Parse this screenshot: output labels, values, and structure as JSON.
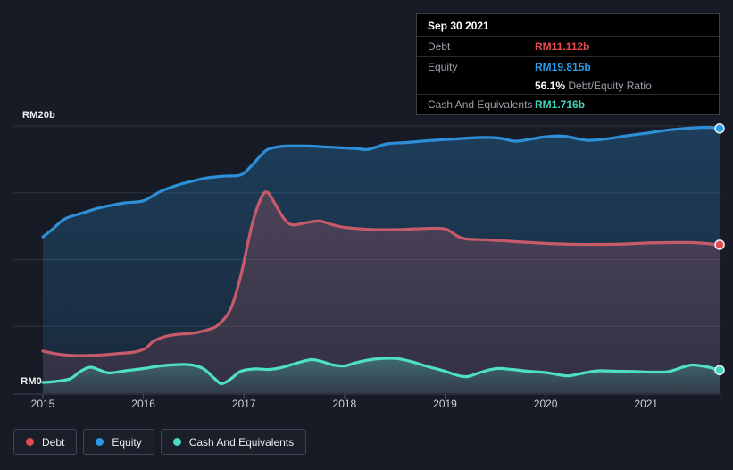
{
  "tooltip": {
    "date": "Sep 30 2021",
    "debt_label": "Debt",
    "debt_value": "RM11.112b",
    "debt_color": "#e8494f",
    "equity_label": "Equity",
    "equity_value": "RM19.815b",
    "equity_color": "#2b9be8",
    "ratio_pct": "56.1%",
    "ratio_label": "Debt/Equity Ratio",
    "cash_label": "Cash And Equivalents",
    "cash_value": "RM1.716b",
    "cash_color": "#3fd6b8"
  },
  "axis": {
    "y_top_label": "RM20b",
    "y_bottom_label": "RM0"
  },
  "legend": [
    {
      "key": "debt",
      "label": "Debt",
      "color": "#e8494f"
    },
    {
      "key": "equity",
      "label": "Equity",
      "color": "#2b9be8"
    },
    {
      "key": "cash",
      "label": "Cash And Equivalents",
      "color": "#45dfc0"
    }
  ],
  "chart_data": {
    "type": "area",
    "currency_unit": "RM billions",
    "x_ticks": [
      "2015",
      "2016",
      "2017",
      "2018",
      "2019",
      "2020",
      "2021"
    ],
    "x_range": [
      2015,
      2021.73
    ],
    "y_range_billions": [
      0,
      20
    ],
    "y_gridlines_billions": [
      5,
      10,
      15,
      20
    ],
    "grid": true,
    "legend_position": "bottom-left",
    "marked_date": "Sep 30 2021",
    "series": [
      {
        "key": "equity",
        "name": "Equity",
        "color": "#2e8fd9",
        "dot_color": "#2b9be8",
        "fill_opacity_top": 0.3,
        "fill_opacity_bottom": 0.12,
        "points": [
          [
            2015.0,
            11.7
          ],
          [
            2015.1,
            12.3
          ],
          [
            2015.22,
            13.05
          ],
          [
            2015.4,
            13.5
          ],
          [
            2015.55,
            13.85
          ],
          [
            2015.67,
            14.05
          ],
          [
            2015.82,
            14.25
          ],
          [
            2016.0,
            14.4
          ],
          [
            2016.17,
            15.1
          ],
          [
            2016.35,
            15.6
          ],
          [
            2016.48,
            15.85
          ],
          [
            2016.62,
            16.1
          ],
          [
            2016.8,
            16.25
          ],
          [
            2016.96,
            16.32
          ],
          [
            2017.06,
            16.9
          ],
          [
            2017.2,
            18.05
          ],
          [
            2017.28,
            18.35
          ],
          [
            2017.42,
            18.5
          ],
          [
            2017.64,
            18.5
          ],
          [
            2017.82,
            18.43
          ],
          [
            2018.0,
            18.36
          ],
          [
            2018.13,
            18.3
          ],
          [
            2018.24,
            18.26
          ],
          [
            2018.42,
            18.66
          ],
          [
            2018.62,
            18.76
          ],
          [
            2018.84,
            18.9
          ],
          [
            2019.11,
            19.03
          ],
          [
            2019.33,
            19.13
          ],
          [
            2019.53,
            19.1
          ],
          [
            2019.7,
            18.86
          ],
          [
            2019.86,
            19.03
          ],
          [
            2020.01,
            19.2
          ],
          [
            2020.19,
            19.23
          ],
          [
            2020.41,
            18.93
          ],
          [
            2020.62,
            19.05
          ],
          [
            2020.8,
            19.26
          ],
          [
            2021.0,
            19.46
          ],
          [
            2021.19,
            19.67
          ],
          [
            2021.42,
            19.83
          ],
          [
            2021.6,
            19.9
          ],
          [
            2021.73,
            19.815
          ]
        ]
      },
      {
        "key": "debt",
        "name": "Debt",
        "color": "#c85b69",
        "dot_color": "#e8494f",
        "fill_opacity_top": 0.28,
        "fill_opacity_bottom": 0.14,
        "points": [
          [
            2015.0,
            3.15
          ],
          [
            2015.15,
            2.92
          ],
          [
            2015.33,
            2.81
          ],
          [
            2015.55,
            2.84
          ],
          [
            2015.73,
            2.95
          ],
          [
            2015.91,
            3.08
          ],
          [
            2016.02,
            3.35
          ],
          [
            2016.1,
            3.88
          ],
          [
            2016.22,
            4.25
          ],
          [
            2016.35,
            4.41
          ],
          [
            2016.48,
            4.48
          ],
          [
            2016.64,
            4.75
          ],
          [
            2016.75,
            5.15
          ],
          [
            2016.87,
            6.35
          ],
          [
            2016.97,
            8.85
          ],
          [
            2017.08,
            12.6
          ],
          [
            2017.17,
            14.6
          ],
          [
            2017.23,
            15.05
          ],
          [
            2017.3,
            14.3
          ],
          [
            2017.4,
            13.05
          ],
          [
            2017.48,
            12.6
          ],
          [
            2017.61,
            12.75
          ],
          [
            2017.75,
            12.88
          ],
          [
            2017.88,
            12.6
          ],
          [
            2018.0,
            12.41
          ],
          [
            2018.22,
            12.27
          ],
          [
            2018.48,
            12.24
          ],
          [
            2018.75,
            12.31
          ],
          [
            2018.93,
            12.34
          ],
          [
            2019.02,
            12.24
          ],
          [
            2019.12,
            11.77
          ],
          [
            2019.21,
            11.54
          ],
          [
            2019.42,
            11.47
          ],
          [
            2019.64,
            11.37
          ],
          [
            2019.86,
            11.27
          ],
          [
            2020.04,
            11.2
          ],
          [
            2020.31,
            11.14
          ],
          [
            2020.57,
            11.14
          ],
          [
            2020.8,
            11.17
          ],
          [
            2021.0,
            11.24
          ],
          [
            2021.25,
            11.27
          ],
          [
            2021.47,
            11.27
          ],
          [
            2021.73,
            11.112
          ]
        ]
      },
      {
        "key": "cash",
        "name": "Cash And Equivalents",
        "color": "#4fdfc4",
        "dot_color": "#3fd6b8",
        "fill_opacity_top": 0.32,
        "fill_opacity_bottom": 0.06,
        "points": [
          [
            2015.0,
            0.8
          ],
          [
            2015.12,
            0.87
          ],
          [
            2015.27,
            1.07
          ],
          [
            2015.37,
            1.61
          ],
          [
            2015.47,
            1.94
          ],
          [
            2015.57,
            1.71
          ],
          [
            2015.66,
            1.51
          ],
          [
            2015.82,
            1.67
          ],
          [
            2016.0,
            1.84
          ],
          [
            2016.17,
            2.04
          ],
          [
            2016.35,
            2.14
          ],
          [
            2016.48,
            2.11
          ],
          [
            2016.6,
            1.81
          ],
          [
            2016.71,
            1.07
          ],
          [
            2016.78,
            0.7
          ],
          [
            2016.87,
            1.07
          ],
          [
            2016.97,
            1.64
          ],
          [
            2017.11,
            1.81
          ],
          [
            2017.24,
            1.77
          ],
          [
            2017.37,
            1.91
          ],
          [
            2017.52,
            2.24
          ],
          [
            2017.67,
            2.51
          ],
          [
            2017.77,
            2.37
          ],
          [
            2017.89,
            2.11
          ],
          [
            2018.0,
            2.04
          ],
          [
            2018.11,
            2.27
          ],
          [
            2018.26,
            2.51
          ],
          [
            2018.41,
            2.61
          ],
          [
            2018.53,
            2.58
          ],
          [
            2018.66,
            2.37
          ],
          [
            2018.82,
            2.01
          ],
          [
            2019.0,
            1.64
          ],
          [
            2019.12,
            1.34
          ],
          [
            2019.22,
            1.24
          ],
          [
            2019.36,
            1.57
          ],
          [
            2019.51,
            1.84
          ],
          [
            2019.66,
            1.77
          ],
          [
            2019.82,
            1.64
          ],
          [
            2020.0,
            1.54
          ],
          [
            2020.13,
            1.37
          ],
          [
            2020.24,
            1.3
          ],
          [
            2020.4,
            1.54
          ],
          [
            2020.53,
            1.67
          ],
          [
            2020.71,
            1.64
          ],
          [
            2020.9,
            1.61
          ],
          [
            2021.07,
            1.57
          ],
          [
            2021.22,
            1.61
          ],
          [
            2021.35,
            1.91
          ],
          [
            2021.46,
            2.11
          ],
          [
            2021.6,
            1.97
          ],
          [
            2021.73,
            1.716
          ]
        ]
      }
    ]
  }
}
